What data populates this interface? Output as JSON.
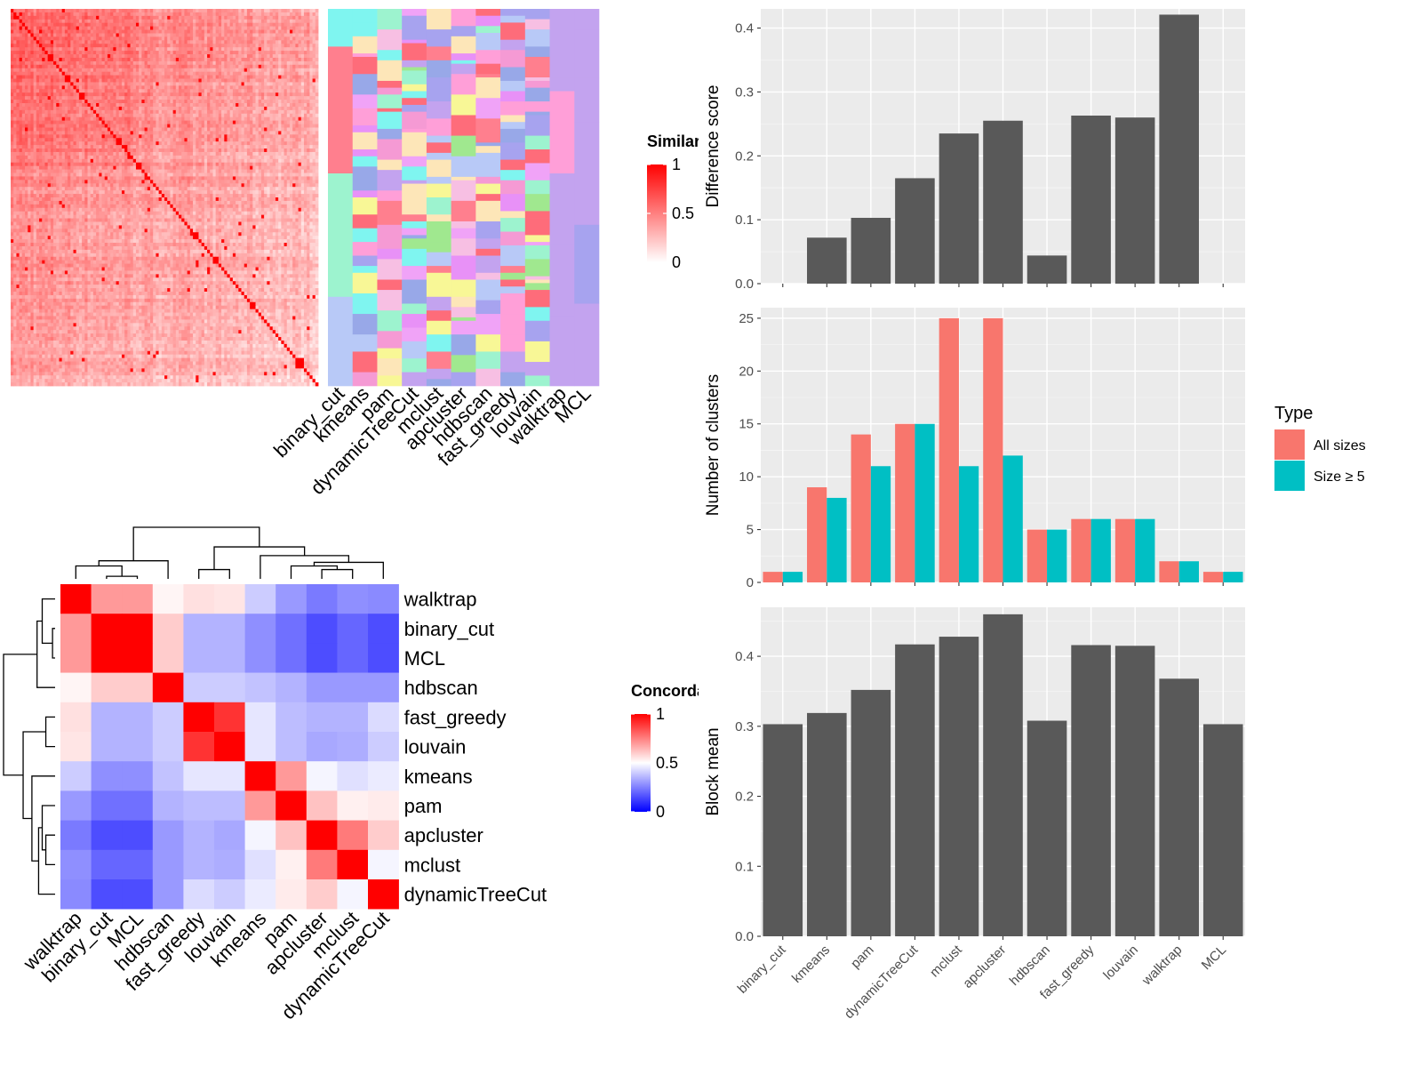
{
  "methods": [
    "binary_cut",
    "kmeans",
    "pam",
    "dynamicTreeCut",
    "mclust",
    "apcluster",
    "hdbscan",
    "fast_greedy",
    "louvain",
    "walktrap",
    "MCL"
  ],
  "colors": {
    "bar_dark": "#595959",
    "panel_bg": "#ebebeb",
    "all_sizes": "#F8766D",
    "size_ge5": "#00BFC4",
    "heat_high": "#ff0000",
    "heat_mid": "#ffffff",
    "heat_low": "#0000ff"
  },
  "chart_data": [
    {
      "id": "similarity_heatmap",
      "type": "heatmap",
      "n_items": 110,
      "legend": {
        "title": "Similarity",
        "ticks": [
          "1",
          "0.5",
          "0"
        ]
      },
      "column_labels": [
        "binary_cut",
        "kmeans",
        "pam",
        "dynamicTreeCut",
        "mclust",
        "apcluster",
        "hdbscan",
        "fast_greedy",
        "louvain",
        "walktrap",
        "MCL"
      ],
      "diagonal_block_sizes": [
        1,
        1,
        1,
        1,
        1,
        1,
        1,
        1,
        1,
        1,
        1,
        1,
        1,
        2,
        1,
        1,
        1,
        1,
        2,
        1,
        1,
        1,
        2,
        1,
        1,
        1,
        1,
        1,
        1,
        1,
        1,
        1,
        1,
        1,
        2,
        1,
        1,
        1,
        1,
        1,
        2,
        1,
        1,
        1,
        1,
        1,
        1,
        1,
        1,
        1,
        1,
        1,
        1,
        1,
        1,
        1,
        1,
        1,
        1,
        2,
        1,
        1,
        1,
        1,
        1,
        2,
        1,
        1,
        1,
        1,
        1,
        1,
        1,
        1,
        1,
        1,
        1,
        2,
        1,
        1,
        1,
        1,
        1,
        1,
        1,
        1,
        1,
        1,
        1,
        1,
        1,
        1,
        3,
        1,
        1,
        1,
        1,
        1
      ]
    },
    {
      "id": "concordance_heatmap",
      "type": "heatmap",
      "legend": {
        "title": "Concordance",
        "ticks": [
          "1",
          "0.5",
          "0"
        ]
      },
      "order": [
        "walktrap",
        "binary_cut",
        "MCL",
        "hdbscan",
        "fast_greedy",
        "louvain",
        "kmeans",
        "pam",
        "apcluster",
        "mclust",
        "dynamicTreeCut"
      ],
      "values": [
        [
          1.0,
          0.7,
          0.7,
          0.52,
          0.56,
          0.55,
          0.4,
          0.3,
          0.24,
          0.28,
          0.27
        ],
        [
          0.7,
          1.0,
          1.0,
          0.6,
          0.35,
          0.35,
          0.28,
          0.22,
          0.15,
          0.2,
          0.15
        ],
        [
          0.7,
          1.0,
          1.0,
          0.6,
          0.35,
          0.35,
          0.28,
          0.22,
          0.15,
          0.2,
          0.15
        ],
        [
          0.52,
          0.6,
          0.6,
          1.0,
          0.4,
          0.4,
          0.38,
          0.35,
          0.3,
          0.3,
          0.3
        ],
        [
          0.56,
          0.35,
          0.35,
          0.4,
          1.0,
          0.9,
          0.45,
          0.37,
          0.35,
          0.35,
          0.43
        ],
        [
          0.55,
          0.35,
          0.35,
          0.4,
          0.9,
          1.0,
          0.45,
          0.37,
          0.33,
          0.34,
          0.4
        ],
        [
          0.4,
          0.28,
          0.28,
          0.38,
          0.45,
          0.45,
          1.0,
          0.7,
          0.48,
          0.44,
          0.46
        ],
        [
          0.3,
          0.22,
          0.22,
          0.35,
          0.37,
          0.37,
          0.7,
          1.0,
          0.62,
          0.53,
          0.54
        ],
        [
          0.24,
          0.15,
          0.15,
          0.3,
          0.35,
          0.33,
          0.48,
          0.62,
          1.0,
          0.76,
          0.6
        ],
        [
          0.28,
          0.2,
          0.2,
          0.3,
          0.35,
          0.34,
          0.44,
          0.53,
          0.76,
          1.0,
          0.48
        ],
        [
          0.27,
          0.15,
          0.15,
          0.3,
          0.43,
          0.4,
          0.46,
          0.54,
          0.6,
          0.48,
          1.0
        ]
      ]
    },
    {
      "id": "difference_score",
      "type": "bar",
      "ylabel": "Difference score",
      "ylim": [
        0,
        0.43
      ],
      "yticks": [
        "0.0",
        "0.1",
        "0.2",
        "0.3",
        "0.4"
      ],
      "categories": [
        "binary_cut",
        "kmeans",
        "pam",
        "dynamicTreeCut",
        "mclust",
        "apcluster",
        "hdbscan",
        "fast_greedy",
        "louvain",
        "walktrap",
        "MCL"
      ],
      "values": [
        0.0,
        0.072,
        0.103,
        0.165,
        0.235,
        0.255,
        0.044,
        0.263,
        0.26,
        0.421,
        0.0
      ]
    },
    {
      "id": "number_of_clusters",
      "type": "bar",
      "ylabel": "Number of clusters",
      "ylim": [
        0,
        26
      ],
      "yticks": [
        "0",
        "5",
        "10",
        "15",
        "20",
        "25"
      ],
      "legend": {
        "title": "Type",
        "position": "right"
      },
      "categories": [
        "binary_cut",
        "kmeans",
        "pam",
        "dynamicTreeCut",
        "mclust",
        "apcluster",
        "hdbscan",
        "fast_greedy",
        "louvain",
        "walktrap",
        "MCL"
      ],
      "series": [
        {
          "name": "All sizes",
          "values": [
            1,
            9,
            14,
            15,
            25,
            25,
            5,
            6,
            6,
            2,
            1
          ]
        },
        {
          "name": "Size ≥ 5",
          "values": [
            1,
            8,
            11,
            15,
            11,
            12,
            5,
            6,
            6,
            2,
            1
          ]
        }
      ]
    },
    {
      "id": "block_mean",
      "type": "bar",
      "ylabel": "Block mean",
      "ylim": [
        0,
        0.47
      ],
      "yticks": [
        "0.0",
        "0.1",
        "0.2",
        "0.3",
        "0.4"
      ],
      "categories": [
        "binary_cut",
        "kmeans",
        "pam",
        "dynamicTreeCut",
        "mclust",
        "apcluster",
        "hdbscan",
        "fast_greedy",
        "louvain",
        "walktrap",
        "MCL"
      ],
      "values": [
        0.303,
        0.319,
        0.352,
        0.417,
        0.428,
        0.46,
        0.308,
        0.416,
        0.415,
        0.368,
        0.303
      ]
    }
  ]
}
